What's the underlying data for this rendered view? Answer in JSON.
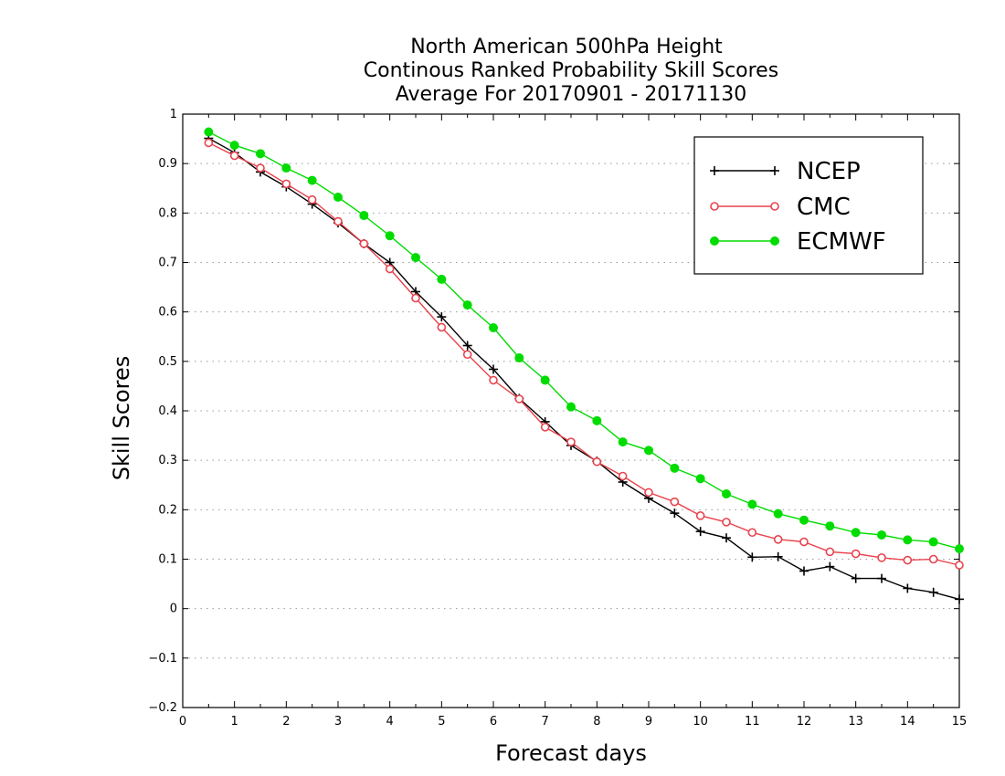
{
  "chart_data": {
    "type": "line",
    "title_lines": [
      "North American 500hPa Height",
      "Continous Ranked Probability Skill Scores",
      "Average For 20170901 - 20171130"
    ],
    "xlabel": "Forecast days",
    "ylabel": "Skill Scores",
    "xlim": [
      0,
      15
    ],
    "ylim": [
      -0.2,
      1
    ],
    "x_ticks": [
      0,
      1,
      2,
      3,
      4,
      5,
      6,
      7,
      8,
      9,
      10,
      11,
      12,
      13,
      14,
      15
    ],
    "y_ticks": [
      -0.2,
      -0.1,
      0,
      0.1,
      0.2,
      0.3,
      0.4,
      0.5,
      0.6,
      0.7,
      0.8,
      0.9,
      1
    ],
    "y_tick_labels": [
      "−0.2",
      "−0.1",
      "0",
      "0.1",
      "0.2",
      "0.3",
      "0.4",
      "0.5",
      "0.6",
      "0.7",
      "0.8",
      "0.9",
      "1"
    ],
    "grid": "horizontal-dotted",
    "legend_position": "top-right",
    "x": [
      0.5,
      1,
      1.5,
      2,
      2.5,
      3,
      3.5,
      4,
      4.5,
      5,
      5.5,
      6,
      6.5,
      7,
      7.5,
      8,
      8.5,
      9,
      9.5,
      10,
      10.5,
      11,
      11.5,
      12,
      12.5,
      13,
      13.5,
      14,
      14.5,
      15
    ],
    "series": [
      {
        "name": "NCEP",
        "color": "#000000",
        "marker": "plus",
        "values": [
          0.951,
          0.922,
          0.883,
          0.853,
          0.818,
          0.78,
          0.738,
          0.7,
          0.641,
          0.59,
          0.532,
          0.484,
          0.425,
          0.378,
          0.33,
          0.298,
          0.256,
          0.223,
          0.193,
          0.156,
          0.143,
          0.104,
          0.105,
          0.076,
          0.085,
          0.061,
          0.061,
          0.041,
          0.033,
          0.019
        ]
      },
      {
        "name": "CMC",
        "color": "#e8434d",
        "marker": "open-circle",
        "values": [
          0.942,
          0.916,
          0.891,
          0.859,
          0.827,
          0.783,
          0.738,
          0.687,
          0.628,
          0.569,
          0.514,
          0.462,
          0.424,
          0.367,
          0.337,
          0.297,
          0.268,
          0.235,
          0.216,
          0.188,
          0.175,
          0.154,
          0.14,
          0.135,
          0.115,
          0.111,
          0.103,
          0.098,
          0.1,
          0.088
        ]
      },
      {
        "name": "ECMWF",
        "color": "#00dc00",
        "marker": "filled-circle",
        "values": [
          0.964,
          0.937,
          0.92,
          0.891,
          0.866,
          0.832,
          0.795,
          0.754,
          0.71,
          0.666,
          0.614,
          0.568,
          0.507,
          0.462,
          0.408,
          0.38,
          0.337,
          0.32,
          0.284,
          0.263,
          0.232,
          0.211,
          0.192,
          0.179,
          0.167,
          0.154,
          0.149,
          0.139,
          0.135,
          0.121
        ]
      }
    ]
  }
}
